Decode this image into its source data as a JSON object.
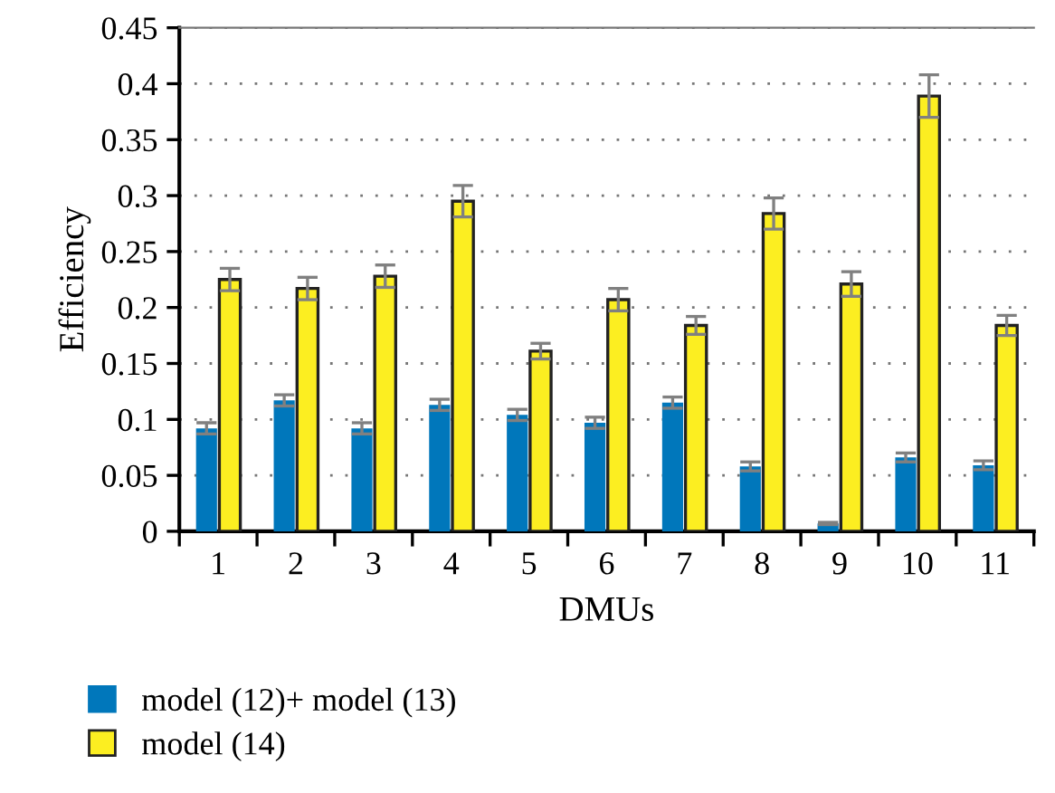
{
  "chart_data": {
    "type": "bar",
    "xlabel": "DMUs",
    "ylabel": "Efficiency",
    "categories": [
      "1",
      "2",
      "3",
      "4",
      "5",
      "6",
      "7",
      "8",
      "9",
      "10",
      "11"
    ],
    "series": [
      {
        "name": "model (12)+ model (13)",
        "color": "#0077bb",
        "values": [
          0.092,
          0.117,
          0.092,
          0.113,
          0.104,
          0.097,
          0.115,
          0.058,
          0.007,
          0.066,
          0.059
        ],
        "errors": [
          0.005,
          0.005,
          0.005,
          0.005,
          0.005,
          0.005,
          0.005,
          0.004,
          0.001,
          0.004,
          0.004
        ]
      },
      {
        "name": "model (14)",
        "color": "#fcee21",
        "values": [
          0.225,
          0.217,
          0.228,
          0.295,
          0.161,
          0.207,
          0.184,
          0.284,
          0.221,
          0.389,
          0.184
        ],
        "errors": [
          0.01,
          0.01,
          0.01,
          0.014,
          0.007,
          0.01,
          0.008,
          0.014,
          0.011,
          0.019,
          0.009
        ]
      }
    ],
    "ylim": [
      0,
      0.45
    ],
    "yticks": [
      0,
      0.05,
      0.1,
      0.15,
      0.2,
      0.25,
      0.3,
      0.35,
      0.4,
      0.45
    ],
    "grid": "y",
    "legend": "bottom left"
  }
}
